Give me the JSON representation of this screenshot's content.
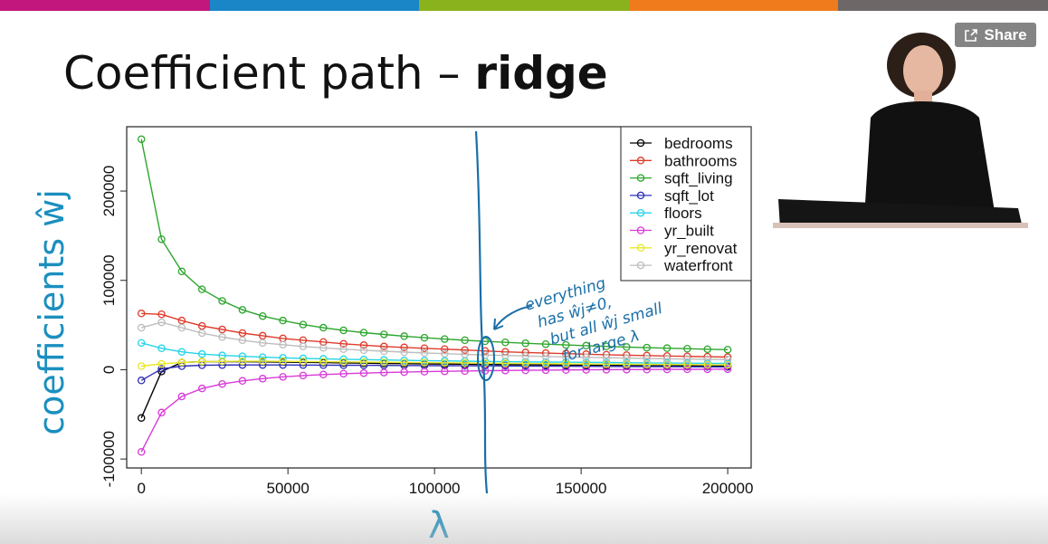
{
  "slide": {
    "title_plain": "Coefficient path – ",
    "title_bold": "ridge",
    "share_label": "Share",
    "topbar_colors": [
      "#c2177d",
      "#1a86c8",
      "#8ab21d",
      "#f07b1d",
      "#6e6767"
    ]
  },
  "annotation": {
    "lines": [
      "everything",
      "has ŵj≠0,",
      "but all ŵj small",
      "for large λ"
    ],
    "color": "#1a6fa8"
  },
  "chart_data": {
    "type": "line",
    "title": "",
    "xlabel": "λ",
    "ylabel": "coefficients ŵj",
    "xlim": [
      -5000,
      208000
    ],
    "ylim": [
      -110000,
      272000
    ],
    "xticks": [
      0,
      50000,
      100000,
      150000,
      200000
    ],
    "xtick_labels": [
      "0",
      "50000",
      "100000",
      "150000",
      "200000"
    ],
    "yticks": [
      -100000,
      0,
      100000,
      200000
    ],
    "ytick_labels": [
      "-100000",
      "0",
      "100000",
      "200000"
    ],
    "grid": false,
    "legend": "top-right",
    "x": [
      0,
      6897,
      13793,
      20690,
      27586,
      34483,
      41379,
      48276,
      55172,
      62069,
      68966,
      75862,
      82759,
      89655,
      96552,
      103448,
      110345,
      117241,
      124138,
      131034,
      137931,
      144828,
      151724,
      158621,
      165517,
      172414,
      179310,
      186207,
      193103,
      200000
    ],
    "series": [
      {
        "name": "bedrooms",
        "color": "#000000",
        "values": [
          -54000,
          -2000,
          8000,
          9000,
          9000,
          9000,
          8800,
          8500,
          8200,
          7900,
          7600,
          7300,
          7000,
          6800,
          6500,
          6300,
          6100,
          5900,
          5700,
          5500,
          5300,
          5200,
          5000,
          4900,
          4700,
          4600,
          4500,
          4400,
          4300,
          4200
        ]
      },
      {
        "name": "bathrooms",
        "color": "#df3b2b",
        "values": [
          63000,
          62000,
          55000,
          49000,
          45000,
          41000,
          38000,
          35000,
          33000,
          31000,
          29000,
          27500,
          26000,
          25000,
          24000,
          23000,
          22000,
          21000,
          20000,
          19300,
          18600,
          18000,
          17400,
          16800,
          16300,
          15800,
          15300,
          14900,
          14500,
          14100
        ]
      },
      {
        "name": "sqft_living",
        "color": "#2ea62e",
        "values": [
          258000,
          146000,
          110000,
          90000,
          77000,
          67000,
          60000,
          55000,
          50500,
          47000,
          44000,
          41500,
          39500,
          37500,
          35800,
          34300,
          33000,
          31800,
          30600,
          29600,
          28600,
          27700,
          26900,
          26100,
          25400,
          24700,
          24100,
          23500,
          22900,
          22400
        ]
      },
      {
        "name": "sqft_lot",
        "color": "#2e2eb8",
        "values": [
          -12000,
          1000,
          4000,
          5000,
          5200,
          5300,
          5300,
          5300,
          5200,
          5100,
          5000,
          4900,
          4800,
          4700,
          4600,
          4500,
          4400,
          4300,
          4200,
          4100,
          4000,
          3900,
          3800,
          3700,
          3600,
          3500,
          3400,
          3300,
          3200,
          3100
        ]
      },
      {
        "name": "floors",
        "color": "#25d4e8",
        "values": [
          30000,
          24000,
          20000,
          17500,
          16000,
          15000,
          14000,
          13300,
          12700,
          12200,
          11700,
          11300,
          10900,
          10500,
          10200,
          9900,
          9600,
          9300,
          9000,
          8800,
          8600,
          8400,
          8200,
          8000,
          7800,
          7600,
          7400,
          7300,
          7100,
          7000
        ]
      },
      {
        "name": "yr_built",
        "color": "#d83ad8",
        "values": [
          -92000,
          -48000,
          -30000,
          -21000,
          -16000,
          -12500,
          -10000,
          -8000,
          -6500,
          -5400,
          -4500,
          -3800,
          -3200,
          -2700,
          -2200,
          -1800,
          -1500,
          -1200,
          -900,
          -700,
          -500,
          -300,
          -150,
          0,
          100,
          200,
          300,
          400,
          500,
          600
        ]
      },
      {
        "name": "yr_renovated",
        "color": "#e8e82a",
        "values": [
          4000,
          6500,
          8000,
          9000,
          9300,
          9500,
          9500,
          9400,
          9200,
          9000,
          8800,
          8500,
          8300,
          8100,
          7900,
          7700,
          7500,
          7300,
          7100,
          6900,
          6700,
          6500,
          6400,
          6200,
          6100,
          5900,
          5800,
          5700,
          5500,
          5400
        ]
      },
      {
        "name": "waterfront",
        "color": "#bdbdbd",
        "values": [
          47000,
          53000,
          47000,
          41000,
          36500,
          33000,
          30000,
          28000,
          26000,
          24500,
          23000,
          21800,
          20700,
          19700,
          18800,
          18000,
          17200,
          16500,
          15900,
          15300,
          14800,
          14300,
          13800,
          13400,
          13000,
          12600,
          12200,
          11900,
          11600,
          11300
        ]
      }
    ],
    "legend_labels": [
      "bedrooms",
      "bathrooms",
      "sqft_living",
      "sqft_lot",
      "floors",
      "yr_built",
      "yr_renovat",
      "waterfront"
    ]
  }
}
